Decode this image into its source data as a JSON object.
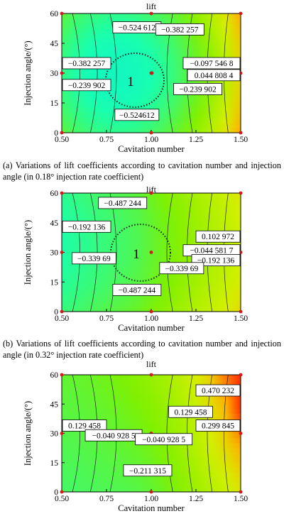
{
  "figure": {
    "captions": [
      "(a)  Variations of lift coefficients according to cavitation number and injection angle (in 0.18° injection rate coefficient)",
      "(b)  Variations of lift coefficients according to cavitation number and injection angle (in 0.32° injection rate coefficient)"
    ]
  },
  "chart_data": [
    {
      "type": "heatmap",
      "title": "lift",
      "xlabel": "Cavitation number",
      "ylabel": "Injection angle/(°)",
      "xlim": [
        0.5,
        1.5
      ],
      "ylim": [
        0,
        60
      ],
      "xticks": [
        "0.50",
        "0.75",
        "1.00",
        "1.25",
        "1.50"
      ],
      "yticks": [
        "0",
        "15",
        "30",
        "45",
        "60"
      ],
      "colormap": [
        "#00d8ff",
        "#18ffb0",
        "#7ff000",
        "#d4f000",
        "#ffb000",
        "#ff3000"
      ],
      "sample_points": [
        [
          0.5,
          0
        ],
        [
          0.5,
          30
        ],
        [
          0.5,
          60
        ],
        [
          1.0,
          0
        ],
        [
          1.0,
          30
        ],
        [
          1.0,
          60
        ],
        [
          1.5,
          0
        ],
        [
          1.5,
          30
        ],
        [
          1.5,
          60
        ]
      ],
      "marker_label": "1",
      "contour_labels": [
        {
          "text": "−0.524 612",
          "x": 0.92,
          "y": 53
        },
        {
          "text": "−0.382 257",
          "x": 1.16,
          "y": 52
        },
        {
          "text": "−0.382 257",
          "x": 0.61,
          "y": 35
        },
        {
          "text": "−0.097 546 8",
          "x": 1.45,
          "y": 35
        },
        {
          "text": "0.044 808 4",
          "x": 1.45,
          "y": 29
        },
        {
          "text": "−0.239 902",
          "x": 0.61,
          "y": 24
        },
        {
          "text": "−0.239 902",
          "x": 1.26,
          "y": 22
        },
        {
          "text": "−0.524612",
          "x": 0.92,
          "y": 9
        }
      ]
    },
    {
      "type": "heatmap",
      "title": "lift",
      "xlabel": "Cavitation number",
      "ylabel": "Injection angle/(°)",
      "xlim": [
        0.5,
        1.5
      ],
      "ylim": [
        0,
        60
      ],
      "xticks": [
        "0.50",
        "0.75",
        "1.00",
        "1.25",
        "1.50"
      ],
      "yticks": [
        "0",
        "15",
        "30",
        "45",
        "60"
      ],
      "colormap": [
        "#00d8ff",
        "#18ffb0",
        "#7ff000",
        "#d4f000",
        "#ffb000",
        "#ff3000"
      ],
      "sample_points": [
        [
          0.5,
          0
        ],
        [
          0.5,
          30
        ],
        [
          0.5,
          60
        ],
        [
          1.0,
          0
        ],
        [
          1.0,
          30
        ],
        [
          1.0,
          60
        ],
        [
          1.5,
          0
        ],
        [
          1.5,
          30
        ],
        [
          1.5,
          60
        ]
      ],
      "marker_label": "1",
      "contour_labels": [
        {
          "text": "−0.487 244",
          "x": 0.84,
          "y": 55
        },
        {
          "text": "−0.192 136",
          "x": 0.59,
          "y": 43
        },
        {
          "text": "0.102 972",
          "x": 1.38,
          "y": 38
        },
        {
          "text": "−0.044 581 7",
          "x": 1.39,
          "y": 31
        },
        {
          "text": "−0.339 69",
          "x": 0.68,
          "y": 27
        },
        {
          "text": "−0.192 136",
          "x": 1.38,
          "y": 26
        },
        {
          "text": "−0.339 69",
          "x": 1.17,
          "y": 22
        },
        {
          "text": "−0.487 244",
          "x": 0.92,
          "y": 11
        }
      ]
    },
    {
      "type": "heatmap",
      "title": "lift",
      "xlabel": "Cavitation number",
      "ylabel": "Injection angle/(°)",
      "xlim": [
        0.5,
        1.5
      ],
      "ylim": [
        0,
        60
      ],
      "xticks": [
        "0.50",
        "0.75",
        "1.00",
        "1.25",
        "1.50"
      ],
      "yticks": [
        "0",
        "15",
        "30",
        "45",
        "60"
      ],
      "colormap": [
        "#00d8ff",
        "#18ffb0",
        "#7ff000",
        "#d4f000",
        "#ffb000",
        "#ff3000"
      ],
      "sample_points": [
        [
          0.5,
          0
        ],
        [
          0.5,
          30
        ],
        [
          0.5,
          60
        ],
        [
          1.0,
          0
        ],
        [
          1.0,
          30
        ],
        [
          1.0,
          60
        ],
        [
          1.5,
          0
        ],
        [
          1.5,
          30
        ],
        [
          1.5,
          60
        ]
      ],
      "contour_labels": [
        {
          "text": "0.470 232",
          "x": 1.43,
          "y": 52
        },
        {
          "text": "0.129 458",
          "x": 1.22,
          "y": 41
        },
        {
          "text": "0.129 458",
          "x": 0.62,
          "y": 34
        },
        {
          "text": "0.299 845",
          "x": 1.41,
          "y": 34
        },
        {
          "text": "−0.040 928 5",
          "x": 0.79,
          "y": 29
        },
        {
          "text": "−0.040 928 5",
          "x": 1.07,
          "y": 27
        },
        {
          "text": "−0.211 315",
          "x": 0.98,
          "y": 11
        }
      ]
    }
  ]
}
